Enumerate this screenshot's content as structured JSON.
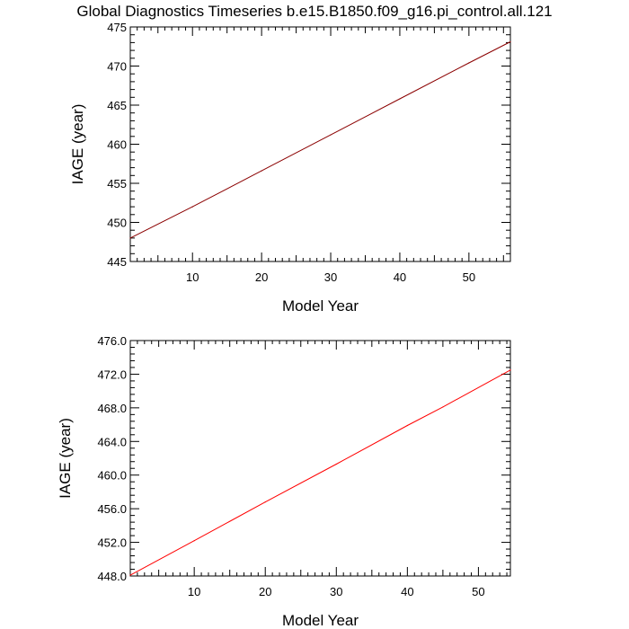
{
  "chart_data": [
    {
      "type": "line",
      "title": "Global Diagnostics Timeseries b.e15.B1850.f09_g16.pi_control.all.121",
      "xlabel": "Model Year",
      "ylabel": "IAGE (year)",
      "xlim": [
        1,
        56
      ],
      "ylim": [
        445,
        475
      ],
      "x_ticks": [
        10,
        20,
        30,
        40,
        50
      ],
      "x_tick_labels": [
        "10",
        "20",
        "30",
        "40",
        "50"
      ],
      "y_ticks": [
        445,
        450,
        455,
        460,
        465,
        470,
        475
      ],
      "y_tick_labels": [
        "445",
        "450",
        "455",
        "460",
        "465",
        "470",
        "475"
      ],
      "grid": false,
      "series": [
        {
          "color": "#8b0000",
          "x": [
            1,
            10,
            20,
            30,
            40,
            50,
            56
          ],
          "y": [
            448.0,
            452.0,
            456.6,
            461.2,
            465.8,
            470.4,
            473.1
          ]
        }
      ]
    },
    {
      "type": "line",
      "title": "",
      "xlabel": "Model Year",
      "ylabel": "IAGE (year)",
      "xlim": [
        1,
        54.5
      ],
      "ylim": [
        448,
        476
      ],
      "x_ticks": [
        10,
        20,
        30,
        40,
        50
      ],
      "x_tick_labels": [
        "10",
        "20",
        "30",
        "40",
        "50"
      ],
      "y_ticks": [
        448,
        452,
        456,
        460,
        464,
        468,
        472,
        476
      ],
      "y_tick_labels": [
        "448.0",
        "452.0",
        "456.0",
        "460.0",
        "464.0",
        "468.0",
        "472.0",
        "476.0"
      ],
      "grid": false,
      "series": [
        {
          "color": "#ff0000",
          "x": [
            1,
            10,
            20,
            30,
            40,
            45,
            54.5
          ],
          "y": [
            448.1,
            452.2,
            456.8,
            461.3,
            465.9,
            468.1,
            472.5
          ]
        }
      ]
    }
  ]
}
